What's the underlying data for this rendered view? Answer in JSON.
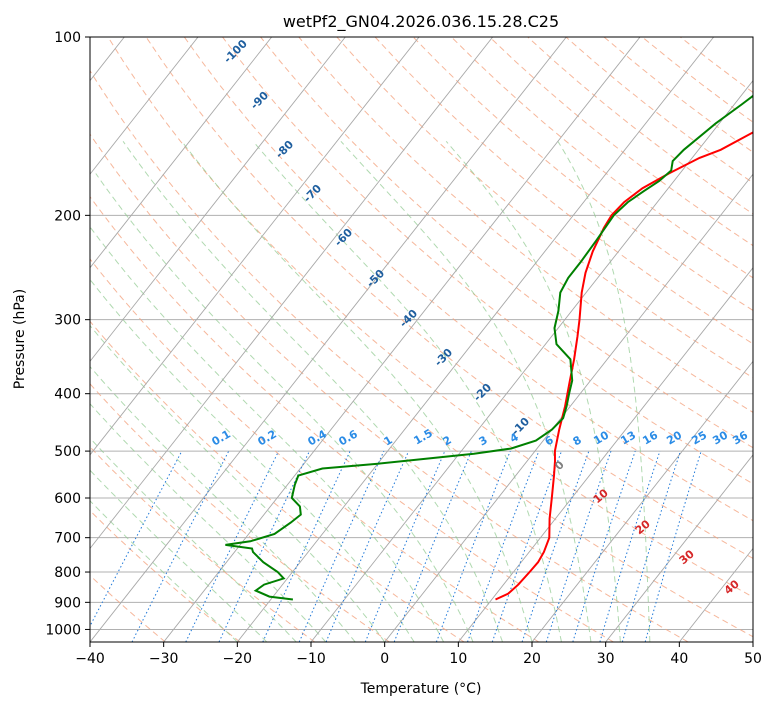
{
  "chart_data": {
    "type": "line",
    "title": "wetPf2_GN04.2026.036.15.28.C25",
    "xlabel": "Temperature (°C)",
    "ylabel": "Pressure (hPa)",
    "xlim": [
      -40,
      50
    ],
    "ylim": [
      1050,
      100
    ],
    "y_scale": "log",
    "x_ticks": [
      -40,
      -30,
      -20,
      -10,
      0,
      10,
      20,
      30,
      40,
      50
    ],
    "y_ticks": [
      100,
      200,
      300,
      400,
      500,
      600,
      700,
      800,
      900,
      1000
    ],
    "grid": true,
    "series": [
      {
        "kind": "temperature",
        "color": "#ff0000",
        "points": [
          [
            890,
            10.5
          ],
          [
            870,
            11.6
          ],
          [
            840,
            12.0
          ],
          [
            800,
            12.2
          ],
          [
            770,
            12.3
          ],
          [
            740,
            12.0
          ],
          [
            700,
            11.2
          ],
          [
            650,
            9.2
          ],
          [
            600,
            7.3
          ],
          [
            550,
            5.2
          ],
          [
            520,
            3.8
          ],
          [
            500,
            2.7
          ],
          [
            460,
            1.0
          ],
          [
            420,
            -0.7
          ],
          [
            380,
            -2.8
          ],
          [
            350,
            -4.5
          ],
          [
            320,
            -6.5
          ],
          [
            300,
            -8.0
          ],
          [
            270,
            -10.6
          ],
          [
            250,
            -12.2
          ],
          [
            230,
            -13.5
          ],
          [
            210,
            -14.5
          ],
          [
            200,
            -14.8
          ],
          [
            190,
            -14.5
          ],
          [
            180,
            -13.5
          ],
          [
            170,
            -11.5
          ],
          [
            160,
            -9.0
          ],
          [
            155,
            -7.0
          ],
          [
            145,
            -4.5
          ],
          [
            135,
            -2.0
          ],
          [
            125,
            0.0
          ],
          [
            115,
            1.3
          ],
          [
            105,
            2.0
          ],
          [
            100,
            2.0
          ]
        ]
      },
      {
        "kind": "dewpoint",
        "color": "#008000",
        "points": [
          [
            890,
            -17.0
          ],
          [
            880,
            -20.5
          ],
          [
            860,
            -23.0
          ],
          [
            840,
            -22.5
          ],
          [
            820,
            -20.5
          ],
          [
            800,
            -22.0
          ],
          [
            770,
            -25.0
          ],
          [
            740,
            -27.5
          ],
          [
            730,
            -28.0
          ],
          [
            720,
            -32.0
          ],
          [
            710,
            -29.0
          ],
          [
            690,
            -26.5
          ],
          [
            660,
            -25.5
          ],
          [
            640,
            -25.0
          ],
          [
            620,
            -26.0
          ],
          [
            600,
            -28.0
          ],
          [
            570,
            -29.0
          ],
          [
            550,
            -29.5
          ],
          [
            535,
            -27.0
          ],
          [
            525,
            -20.0
          ],
          [
            515,
            -14.0
          ],
          [
            505,
            -8.0
          ],
          [
            495,
            -3.5
          ],
          [
            480,
            -1.0
          ],
          [
            460,
            0.0
          ],
          [
            440,
            0.3
          ],
          [
            420,
            -0.5
          ],
          [
            400,
            -1.5
          ],
          [
            380,
            -2.5
          ],
          [
            350,
            -5.0
          ],
          [
            330,
            -8.5
          ],
          [
            310,
            -10.5
          ],
          [
            290,
            -11.8
          ],
          [
            270,
            -13.5
          ],
          [
            255,
            -14.0
          ],
          [
            240,
            -14.0
          ],
          [
            220,
            -14.2
          ],
          [
            200,
            -14.5
          ],
          [
            190,
            -14.0
          ],
          [
            182,
            -13.0
          ],
          [
            175,
            -12.0
          ],
          [
            168,
            -11.5
          ],
          [
            162,
            -12.3
          ],
          [
            155,
            -12.0
          ],
          [
            140,
            -10.5
          ],
          [
            130,
            -9.0
          ],
          [
            120,
            -7.5
          ],
          [
            110,
            -5.5
          ],
          [
            104,
            -4.0
          ],
          [
            100,
            -3.0
          ]
        ]
      }
    ],
    "isotherm_labels": [
      "-100",
      "-90",
      "-80",
      "-70",
      "-60",
      "-50",
      "-40",
      "-30",
      "-20",
      "-10",
      "0"
    ],
    "mixing_ratio_labels": [
      "0.1",
      "0.2",
      "0.4",
      "0.6",
      "1",
      "1.5",
      "2",
      "3",
      "4",
      "6",
      "8",
      "10",
      "13",
      "16",
      "20",
      "25",
      "30",
      "36"
    ],
    "theta_labels": [
      "10",
      "20",
      "30",
      "40"
    ]
  }
}
